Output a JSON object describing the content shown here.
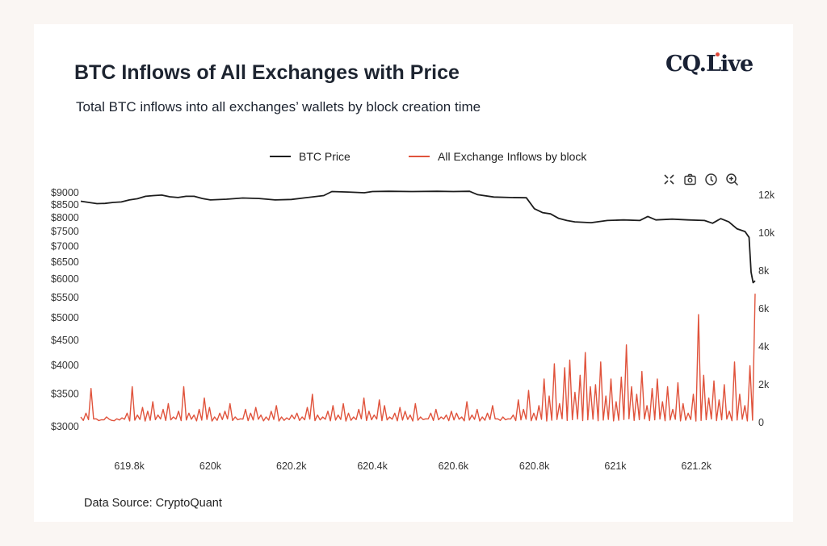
{
  "header": {
    "title": "BTC Inflows of All Exchanges with Price",
    "subtitle": "Total BTC inflows into all exchanges’ wallets by block creation time",
    "logo": "CQ.Live"
  },
  "footer": {
    "source": "Data Source: CryptoQuant"
  },
  "toolbar": [
    "fullscreen-icon",
    "camera-icon",
    "clock-icon",
    "zoom-in-icon"
  ],
  "chart_data": {
    "type": "line",
    "title": "BTC Inflows of All Exchanges with Price",
    "legend": [
      {
        "name": "BTC Price",
        "color": "#1d1d1d"
      },
      {
        "name": "All Exchange Inflows by block",
        "color": "#e0533c"
      }
    ],
    "legend_position": "top-center",
    "x_range": [
      619.68,
      621.345
    ],
    "x_ticks": [
      {
        "v": 619.8,
        "label": "619.8k"
      },
      {
        "v": 620.0,
        "label": "620k"
      },
      {
        "v": 620.2,
        "label": "620.2k"
      },
      {
        "v": 620.4,
        "label": "620.4k"
      },
      {
        "v": 620.6,
        "label": "620.6k"
      },
      {
        "v": 620.8,
        "label": "620.8k"
      },
      {
        "v": 621.0,
        "label": "621k"
      },
      {
        "v": 621.2,
        "label": "621.2k"
      }
    ],
    "y_left": {
      "scale": "log",
      "range": [
        3000,
        9000
      ],
      "ticks": [
        "$9000",
        "$8500",
        "$8000",
        "$7500",
        "$7000",
        "$6500",
        "$6000",
        "$5500",
        "$5000",
        "$4500",
        "$4000",
        "$3500",
        "$3000"
      ],
      "tick_values": [
        9000,
        8500,
        8000,
        7500,
        7000,
        6500,
        6000,
        5500,
        5000,
        4500,
        4000,
        3500,
        3000
      ]
    },
    "y_right": {
      "scale": "linear",
      "range": [
        0,
        12000
      ],
      "ticks": [
        "12k",
        "10k",
        "8k",
        "6k",
        "4k",
        "2k",
        "0"
      ],
      "tick_values": [
        12000,
        10000,
        8000,
        6000,
        4000,
        2000,
        0
      ]
    },
    "series": [
      {
        "name": "BTC Price",
        "x": [
          619.68,
          619.7,
          619.72,
          619.74,
          619.76,
          619.78,
          619.8,
          619.82,
          619.84,
          619.86,
          619.88,
          619.9,
          619.92,
          619.94,
          619.96,
          619.98,
          620.0,
          620.04,
          620.08,
          620.12,
          620.16,
          620.2,
          620.24,
          620.28,
          620.3,
          620.34,
          620.38,
          620.4,
          620.44,
          620.5,
          620.56,
          620.6,
          620.64,
          620.66,
          620.7,
          620.74,
          620.78,
          620.8,
          620.82,
          620.84,
          620.86,
          620.88,
          620.9,
          620.94,
          620.98,
          621.02,
          621.06,
          621.08,
          621.1,
          621.14,
          621.18,
          621.22,
          621.24,
          621.26,
          621.28,
          621.3,
          621.32,
          621.33,
          621.335,
          621.34,
          621.345
        ],
        "values": [
          8650,
          8600,
          8550,
          8560,
          8600,
          8620,
          8700,
          8750,
          8850,
          8880,
          8900,
          8830,
          8800,
          8850,
          8850,
          8760,
          8700,
          8730,
          8780,
          8760,
          8700,
          8720,
          8800,
          8880,
          9050,
          9030,
          9000,
          9050,
          9060,
          9050,
          9060,
          9050,
          9060,
          8920,
          8820,
          8800,
          8790,
          8350,
          8200,
          8150,
          7980,
          7900,
          7850,
          7820,
          7900,
          7920,
          7900,
          8050,
          7920,
          7950,
          7920,
          7900,
          7800,
          7970,
          7850,
          7600,
          7500,
          7300,
          6200,
          5900,
          5950
        ]
      },
      {
        "name": "All Exchange Inflows by block",
        "values": [
          300,
          500,
          1800,
          200,
          150,
          300,
          120,
          200,
          250,
          500,
          1900,
          400,
          800,
          600,
          1100,
          400,
          700,
          1000,
          300,
          600,
          1900,
          500,
          400,
          700,
          1300,
          800,
          300,
          500,
          600,
          1000,
          300,
          200,
          700,
          500,
          800,
          400,
          300,
          600,
          900,
          300,
          250,
          400,
          500,
          300,
          800,
          1500,
          400,
          300,
          600,
          900,
          400,
          1000,
          500,
          300,
          700,
          1300,
          600,
          400,
          1200,
          900,
          300,
          500,
          800,
          600,
          400,
          1000,
          300,
          200,
          500,
          700,
          300,
          400,
          600,
          500,
          300,
          1100,
          400,
          700,
          300,
          500,
          900,
          200,
          300,
          200,
          400,
          1200,
          700,
          1700,
          500,
          900,
          2300,
          1400,
          3100,
          1000,
          2900,
          3300,
          1600,
          2500,
          3700,
          1900,
          2000,
          3200,
          1400,
          2300,
          1100,
          2400,
          4100,
          1900,
          1500,
          2700,
          900,
          1800,
          2300,
          1100,
          1900,
          700,
          2100,
          1000,
          500,
          1500,
          5700,
          2500,
          1300,
          2200,
          1200,
          2000,
          600,
          3200,
          1500,
          900,
          3000,
          6800
        ]
      }
    ]
  }
}
